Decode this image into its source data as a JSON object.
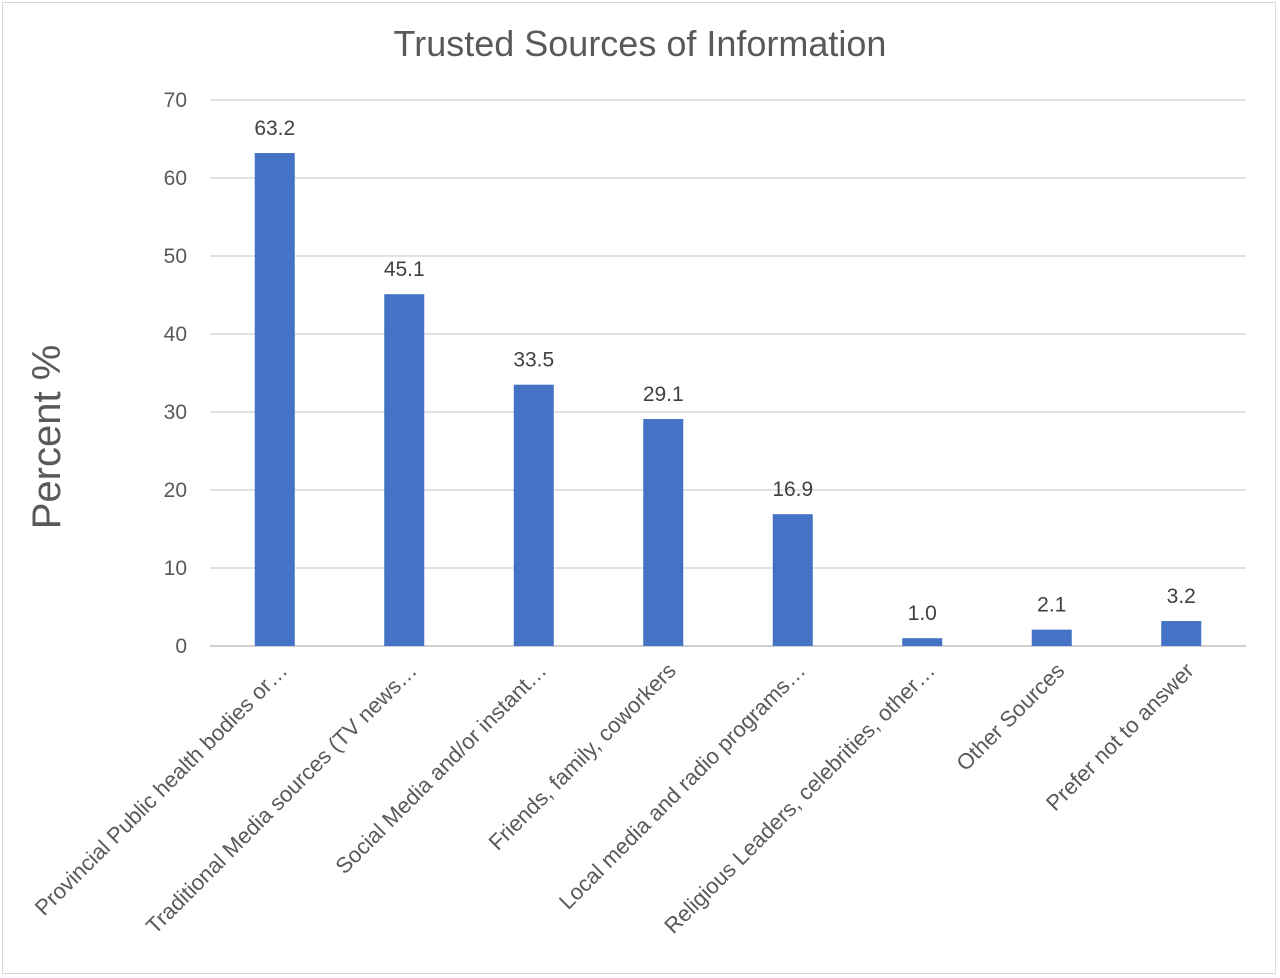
{
  "chart_data": {
    "type": "bar",
    "title": "Trusted Sources of Information",
    "xlabel": "",
    "ylabel": "Percent %",
    "ylim": [
      0,
      70
    ],
    "yticks": [
      0,
      10,
      20,
      30,
      40,
      50,
      60,
      70
    ],
    "grid": true,
    "legend": "none",
    "bar_color": "#4472c4",
    "categories": [
      "Provincial Public health bodies or…",
      "Traditional Media sources (TV news…",
      "Social Media and/or instant…",
      "Friends, family, coworkers",
      "Local media and radio programs…",
      "Religious Leaders, celebrities, other…",
      "Other Sources",
      "Prefer not to answer"
    ],
    "values": [
      63.2,
      45.1,
      33.5,
      29.1,
      16.9,
      1.0,
      2.1,
      3.2
    ],
    "data_labels": [
      "63.2",
      "45.1",
      "33.5",
      "29.1",
      "16.9",
      "1.0",
      "2.1",
      "3.2"
    ]
  }
}
